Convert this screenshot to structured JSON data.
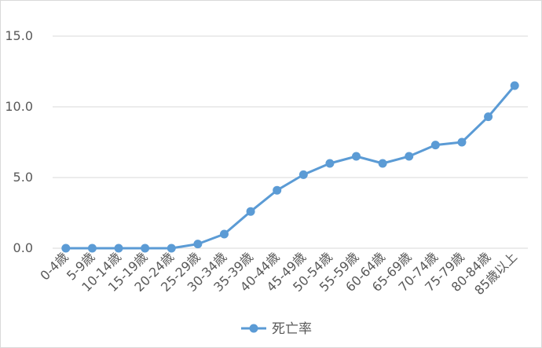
{
  "chart_data": {
    "type": "line",
    "categories": [
      "0-4歳",
      "5-9歳",
      "10-14歳",
      "15-19歳",
      "20-24歳",
      "25-29歳",
      "30-34歳",
      "35-39歳",
      "40-44歳",
      "45-49歳",
      "50-54歳",
      "55-59歳",
      "60-64歳",
      "65-69歳",
      "70-74歳",
      "75-79歳",
      "80-84歳",
      "85歳以上"
    ],
    "series": [
      {
        "name": "死亡率",
        "values": [
          0.0,
          0.0,
          0.0,
          0.0,
          0.0,
          0.3,
          1.0,
          2.6,
          4.1,
          5.2,
          6.0,
          6.5,
          6.0,
          6.5,
          7.3,
          7.5,
          9.3,
          11.5
        ],
        "color": "#5b9bd5"
      }
    ],
    "ylim": [
      0,
      15
    ],
    "yticks": [
      "0.0",
      "5.0",
      "10.0",
      "15.0"
    ],
    "grid": true,
    "legend_position": "bottom",
    "title": "",
    "xlabel": "",
    "ylabel": ""
  }
}
